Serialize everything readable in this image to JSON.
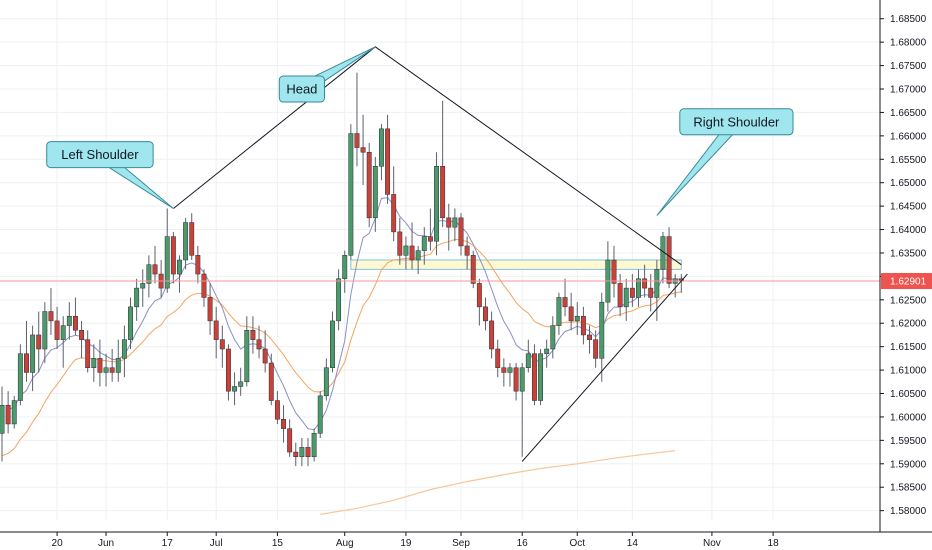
{
  "chart_data": {
    "type": "candlestick",
    "title": "",
    "xlabel": "",
    "ylabel": "",
    "ylim": [
      1.578,
      1.689
    ],
    "y_ticks": [
      1.58,
      1.585,
      1.59,
      1.595,
      1.6,
      1.605,
      1.61,
      1.615,
      1.62,
      1.625,
      1.63,
      1.635,
      1.64,
      1.645,
      1.65,
      1.655,
      1.66,
      1.665,
      1.67,
      1.675,
      1.68,
      1.685
    ],
    "y_tick_labels": [
      "1.58000",
      "1.58500",
      "1.59000",
      "1.59500",
      "1.60000",
      "1.60500",
      "1.61000",
      "1.61500",
      "1.62000",
      "1.62500",
      "1.63000",
      "1.63500",
      "1.64000",
      "1.64500",
      "1.65000",
      "1.65500",
      "1.66000",
      "1.66500",
      "1.67000",
      "1.67500",
      "1.68000",
      "1.68500"
    ],
    "x_ticks": [
      {
        "label": "20",
        "index": 9
      },
      {
        "label": "Jun",
        "index": 17
      },
      {
        "label": "17",
        "index": 27
      },
      {
        "label": "Jul",
        "index": 35
      },
      {
        "label": "15",
        "index": 45
      },
      {
        "label": "Aug",
        "index": 56
      },
      {
        "label": "19",
        "index": 66
      },
      {
        "label": "Sep",
        "index": 75
      },
      {
        "label": "16",
        "index": 85
      },
      {
        "label": "Oct",
        "index": 94
      },
      {
        "label": "14",
        "index": 103
      },
      {
        "label": "Nov",
        "index": 116
      },
      {
        "label": "18",
        "index": 126
      }
    ],
    "last_price": 1.62901,
    "last_price_label": "1.62901",
    "colors": {
      "up": "#4c9a6a",
      "down": "#c8423a",
      "ema_fast": "#8a8fc8",
      "ema_slow": "#f5a45c",
      "ema_long": "#f5c89a",
      "price_line": "#f19a94",
      "price_badge": "#ef5350",
      "callout_fill": "#9fe6ee",
      "callout_border": "#3a8a96",
      "zone_fill": "#fff8d0",
      "zone_border": "#7fc3e0",
      "grid": "#eef0f3",
      "pattern_line": "#131722"
    },
    "candles": [
      [
        1.5965,
        1.6065,
        1.5905,
        1.6025
      ],
      [
        1.6025,
        1.6055,
        1.5965,
        1.5985
      ],
      [
        1.5985,
        1.6045,
        1.5975,
        1.6035
      ],
      [
        1.6035,
        1.6155,
        1.6025,
        1.6135
      ],
      [
        1.6135,
        1.6205,
        1.6075,
        1.6095
      ],
      [
        1.6095,
        1.6195,
        1.6055,
        1.6175
      ],
      [
        1.6175,
        1.6225,
        1.6095,
        1.6145
      ],
      [
        1.6145,
        1.6245,
        1.6115,
        1.6225
      ],
      [
        1.6225,
        1.6275,
        1.6175,
        1.6205
      ],
      [
        1.6205,
        1.6235,
        1.6145,
        1.6165
      ],
      [
        1.6165,
        1.6215,
        1.6105,
        1.6195
      ],
      [
        1.6195,
        1.6245,
        1.6165,
        1.6215
      ],
      [
        1.6215,
        1.6255,
        1.6175,
        1.6185
      ],
      [
        1.6185,
        1.6205,
        1.6125,
        1.6165
      ],
      [
        1.6165,
        1.6185,
        1.6095,
        1.6105
      ],
      [
        1.6105,
        1.6155,
        1.6075,
        1.6125
      ],
      [
        1.6125,
        1.6165,
        1.6065,
        1.6095
      ],
      [
        1.6095,
        1.6135,
        1.6065,
        1.6105
      ],
      [
        1.6105,
        1.6145,
        1.6075,
        1.6095
      ],
      [
        1.6095,
        1.6165,
        1.6075,
        1.6125
      ],
      [
        1.6125,
        1.6195,
        1.6085,
        1.6165
      ],
      [
        1.6165,
        1.6255,
        1.6145,
        1.6235
      ],
      [
        1.6235,
        1.6295,
        1.6205,
        1.6275
      ],
      [
        1.6275,
        1.6315,
        1.6235,
        1.6285
      ],
      [
        1.6285,
        1.6345,
        1.6255,
        1.6325
      ],
      [
        1.6325,
        1.6365,
        1.6285,
        1.6305
      ],
      [
        1.6305,
        1.6335,
        1.6255,
        1.6275
      ],
      [
        1.6275,
        1.6445,
        1.6265,
        1.6385
      ],
      [
        1.6385,
        1.6395,
        1.6285,
        1.6305
      ],
      [
        1.6305,
        1.6345,
        1.6265,
        1.6335
      ],
      [
        1.6335,
        1.6425,
        1.6315,
        1.6415
      ],
      [
        1.6415,
        1.6435,
        1.6335,
        1.6345
      ],
      [
        1.6345,
        1.6365,
        1.6285,
        1.6305
      ],
      [
        1.6305,
        1.6315,
        1.6235,
        1.6255
      ],
      [
        1.6255,
        1.6285,
        1.6175,
        1.6205
      ],
      [
        1.6205,
        1.6235,
        1.6125,
        1.6165
      ],
      [
        1.6165,
        1.6195,
        1.6105,
        1.6145
      ],
      [
        1.6145,
        1.6155,
        1.6035,
        1.6055
      ],
      [
        1.6055,
        1.6095,
        1.6025,
        1.6065
      ],
      [
        1.6065,
        1.6105,
        1.6045,
        1.6075
      ],
      [
        1.6075,
        1.6215,
        1.6065,
        1.6185
      ],
      [
        1.6185,
        1.6215,
        1.6135,
        1.6165
      ],
      [
        1.6165,
        1.6195,
        1.6125,
        1.6145
      ],
      [
        1.6145,
        1.6185,
        1.6095,
        1.6115
      ],
      [
        1.6115,
        1.6135,
        1.6025,
        1.6035
      ],
      [
        1.6035,
        1.6055,
        1.5985,
        1.5995
      ],
      [
        1.5995,
        1.6025,
        1.5945,
        1.5975
      ],
      [
        1.5975,
        1.5995,
        1.5915,
        1.5925
      ],
      [
        1.5925,
        1.5945,
        1.5895,
        1.5915
      ],
      [
        1.5915,
        1.5955,
        1.5895,
        1.5935
      ],
      [
        1.5935,
        1.5955,
        1.5895,
        1.5915
      ],
      [
        1.5915,
        1.5975,
        1.5905,
        1.5965
      ],
      [
        1.5965,
        1.6055,
        1.5955,
        1.6045
      ],
      [
        1.6045,
        1.6125,
        1.6035,
        1.6105
      ],
      [
        1.6105,
        1.6225,
        1.6095,
        1.6205
      ],
      [
        1.6205,
        1.6315,
        1.6185,
        1.6295
      ],
      [
        1.6295,
        1.6355,
        1.6265,
        1.6345
      ],
      [
        1.6345,
        1.6625,
        1.6335,
        1.6605
      ],
      [
        1.6605,
        1.6735,
        1.6535,
        1.6575
      ],
      [
        1.6575,
        1.6645,
        1.6495,
        1.6565
      ],
      [
        1.6565,
        1.6585,
        1.6405,
        1.6425
      ],
      [
        1.6425,
        1.6555,
        1.6395,
        1.6535
      ],
      [
        1.6535,
        1.6625,
        1.6505,
        1.6615
      ],
      [
        1.6615,
        1.6645,
        1.6455,
        1.6475
      ],
      [
        1.6475,
        1.6535,
        1.6375,
        1.6395
      ],
      [
        1.6395,
        1.6425,
        1.6325,
        1.6345
      ],
      [
        1.6345,
        1.6385,
        1.6315,
        1.6365
      ],
      [
        1.6365,
        1.6415,
        1.6315,
        1.6335
      ],
      [
        1.6335,
        1.6365,
        1.6305,
        1.6355
      ],
      [
        1.6355,
        1.6405,
        1.6325,
        1.6385
      ],
      [
        1.6385,
        1.6445,
        1.6355,
        1.6375
      ],
      [
        1.6375,
        1.6565,
        1.6345,
        1.6535
      ],
      [
        1.6535,
        1.6675,
        1.6405,
        1.6425
      ],
      [
        1.6425,
        1.6455,
        1.6355,
        1.6405
      ],
      [
        1.6405,
        1.6445,
        1.6375,
        1.6425
      ],
      [
        1.6425,
        1.6435,
        1.6345,
        1.6365
      ],
      [
        1.6365,
        1.6385,
        1.6315,
        1.6345
      ],
      [
        1.6345,
        1.6355,
        1.6275,
        1.6285
      ],
      [
        1.6285,
        1.6295,
        1.6195,
        1.6235
      ],
      [
        1.6235,
        1.6255,
        1.6185,
        1.6205
      ],
      [
        1.6205,
        1.6225,
        1.6125,
        1.6145
      ],
      [
        1.6145,
        1.6165,
        1.6085,
        1.6105
      ],
      [
        1.6105,
        1.6125,
        1.6065,
        1.6095
      ],
      [
        1.6095,
        1.6115,
        1.6065,
        1.6105
      ],
      [
        1.6105,
        1.6115,
        1.6035,
        1.6055
      ],
      [
        1.6055,
        1.6115,
        1.5915,
        1.6105
      ],
      [
        1.6105,
        1.6165,
        1.6095,
        1.6135
      ],
      [
        1.6135,
        1.6155,
        1.6025,
        1.6035
      ],
      [
        1.6035,
        1.6145,
        1.6025,
        1.6135
      ],
      [
        1.6135,
        1.6165,
        1.6105,
        1.6145
      ],
      [
        1.6145,
        1.6215,
        1.6125,
        1.6195
      ],
      [
        1.6195,
        1.6265,
        1.6175,
        1.6255
      ],
      [
        1.6255,
        1.6295,
        1.6215,
        1.6235
      ],
      [
        1.6235,
        1.6265,
        1.6185,
        1.6205
      ],
      [
        1.6205,
        1.6245,
        1.6175,
        1.6215
      ],
      [
        1.6215,
        1.6235,
        1.6155,
        1.6175
      ],
      [
        1.6175,
        1.6195,
        1.6135,
        1.6165
      ],
      [
        1.6165,
        1.6185,
        1.6105,
        1.6125
      ],
      [
        1.6125,
        1.6265,
        1.6075,
        1.6245
      ],
      [
        1.6245,
        1.6375,
        1.6225,
        1.6335
      ],
      [
        1.6335,
        1.6365,
        1.6255,
        1.6285
      ],
      [
        1.6285,
        1.6305,
        1.6215,
        1.6235
      ],
      [
        1.6235,
        1.6295,
        1.6205,
        1.6275
      ],
      [
        1.6275,
        1.6305,
        1.6235,
        1.6255
      ],
      [
        1.6255,
        1.6315,
        1.6235,
        1.6295
      ],
      [
        1.6295,
        1.6325,
        1.6255,
        1.6275
      ],
      [
        1.6275,
        1.6305,
        1.6225,
        1.6255
      ],
      [
        1.6255,
        1.6335,
        1.6205,
        1.6315
      ],
      [
        1.6315,
        1.6395,
        1.6285,
        1.6385
      ],
      [
        1.6385,
        1.6405,
        1.6275,
        1.6285
      ],
      [
        1.6285,
        1.6305,
        1.6255,
        1.6295
      ],
      [
        1.6295,
        1.6305,
        1.6265,
        1.629
      ]
    ],
    "ema_long": [
      [
        52,
        1.5792
      ],
      [
        58,
        1.5805
      ],
      [
        64,
        1.5822
      ],
      [
        70,
        1.5845
      ],
      [
        76,
        1.5862
      ],
      [
        82,
        1.5877
      ],
      [
        88,
        1.589
      ],
      [
        94,
        1.59
      ],
      [
        100,
        1.5912
      ],
      [
        106,
        1.5922
      ],
      [
        110,
        1.5928
      ]
    ],
    "zones": [
      {
        "x0": 57,
        "x1": 111,
        "y_top": 1.6335,
        "y_bottom": 1.6315
      }
    ],
    "pattern_lines": [
      {
        "points": [
          [
            28,
            1.6445
          ],
          [
            61,
            1.679
          ],
          [
            111,
            1.6325
          ]
        ]
      },
      {
        "points": [
          [
            85,
            1.5905
          ],
          [
            112,
            1.6305
          ]
        ]
      }
    ],
    "callouts": [
      {
        "label": "Left Shoulder",
        "box_index": 16,
        "box_y": 1.656,
        "anchor_index": 28,
        "anchor_y": 1.6445
      },
      {
        "label": "Head",
        "box_index": 49,
        "box_y": 1.67,
        "anchor_index": 61,
        "anchor_y": 1.679
      },
      {
        "label": "Right Shoulder",
        "box_index": 120,
        "box_y": 1.663,
        "anchor_index": 107,
        "anchor_y": 1.643
      }
    ]
  }
}
